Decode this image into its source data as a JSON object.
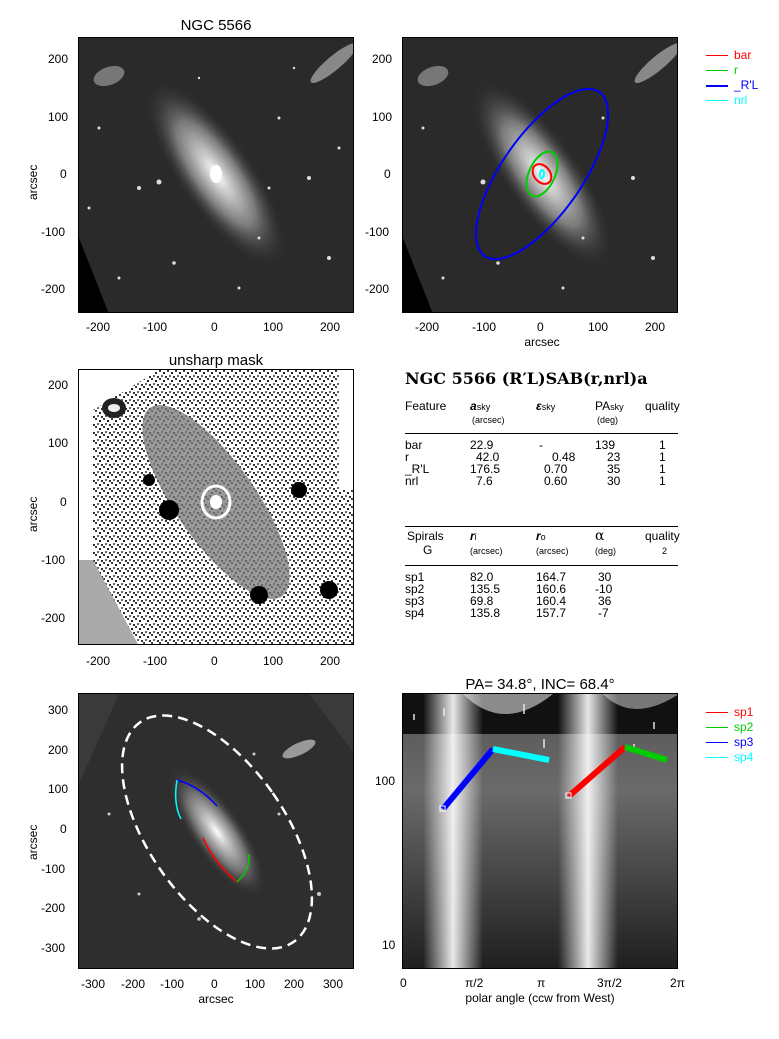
{
  "top_left": {
    "title": "NGC 5566",
    "ylabel": "arcsec",
    "yticks": [
      "200",
      "100",
      "0",
      "-100",
      "-200"
    ],
    "xticks": [
      "-200",
      "-100",
      "0",
      "100",
      "200"
    ]
  },
  "top_right": {
    "xlabel": "arcsec",
    "yticks": [
      "200",
      "100",
      "0",
      "-100",
      "-200"
    ],
    "xticks": [
      "-200",
      "-100",
      "0",
      "100",
      "200"
    ],
    "legend": [
      {
        "label": "bar",
        "color": "#ff0000"
      },
      {
        "label": "r",
        "color": "#00cc00"
      },
      {
        "label": "_R'L",
        "color": "#0000ff"
      },
      {
        "label": "nrl",
        "color": "#00ffff"
      }
    ]
  },
  "mid_left": {
    "title": "unsharp mask",
    "ylabel": "arcsec",
    "yticks": [
      "200",
      "100",
      "0",
      "-100",
      "-200"
    ],
    "xticks": [
      "-200",
      "-100",
      "0",
      "100",
      "200"
    ]
  },
  "classification": {
    "title": "NGC 5566  (R′L)SAB(r,nrl)a",
    "features_header": {
      "feature": "Feature",
      "a": "a",
      "a_sub": "sky",
      "a_unit": "(arcsec)",
      "eps": "ε",
      "eps_sub": "sky",
      "pa": "PA",
      "pa_sub": "sky",
      "pa_unit": "(deg)",
      "quality": "quality"
    },
    "features": [
      {
        "name": "bar",
        "a": "22.9",
        "eps": "-",
        "pa": "139",
        "q": "1"
      },
      {
        "name": "r",
        "a": "42.0",
        "eps": "0.48",
        "pa": "23",
        "q": "1"
      },
      {
        "name": "_R'L",
        "a": "176.5",
        "eps": "0.70",
        "pa": "35",
        "q": "1"
      },
      {
        "name": "nrl",
        "a": "7.6",
        "eps": "0.60",
        "pa": "30",
        "q": "1"
      }
    ],
    "spirals_header": {
      "spirals": "Spirals",
      "g": "G",
      "ri": "r",
      "ri_sub": "i",
      "ri_unit": "(arcsec)",
      "ro": "r",
      "ro_sub": "o",
      "ro_unit": "(arcsec)",
      "alpha": "α",
      "alpha_unit": "(deg)",
      "quality": "quality",
      "quality_val": "2"
    },
    "spirals": [
      {
        "name": "sp1",
        "ri": "82.0",
        "ro": "164.7",
        "alpha": "30"
      },
      {
        "name": "sp2",
        "ri": "135.5",
        "ro": "160.6",
        "alpha": "-10"
      },
      {
        "name": "sp3",
        "ri": "69.8",
        "ro": "160.4",
        "alpha": "36"
      },
      {
        "name": "sp4",
        "ri": "135.8",
        "ro": "157.7",
        "alpha": "-7"
      }
    ]
  },
  "bottom_left": {
    "ylabel": "arcsec",
    "xlabel": "arcsec",
    "yticks": [
      "300",
      "200",
      "100",
      "0",
      "-100",
      "-200",
      "-300"
    ],
    "xticks": [
      "-300",
      "-200",
      "-100",
      "0",
      "100",
      "200",
      "300"
    ]
  },
  "bottom_right": {
    "title": "PA=  34.8°, INC=  68.4°",
    "xlabel": "polar angle (ccw from West)",
    "xticks": [
      "0",
      "π/2",
      "π",
      "3π/2",
      "2π"
    ],
    "yticks": [
      "100",
      "10"
    ],
    "legend": [
      {
        "label": "sp1",
        "color": "#ff0000"
      },
      {
        "label": "sp2",
        "color": "#00cc00"
      },
      {
        "label": "sp3",
        "color": "#0000ff"
      },
      {
        "label": "sp4",
        "color": "#00ffff"
      }
    ]
  }
}
